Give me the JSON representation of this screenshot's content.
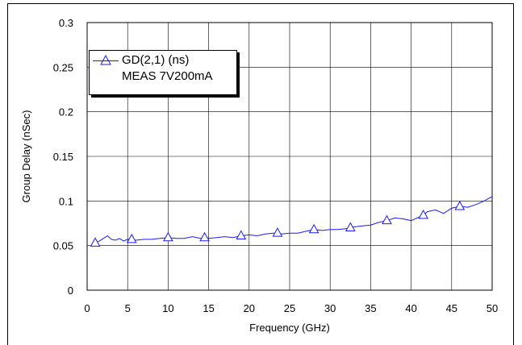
{
  "chart_data": {
    "type": "line",
    "xlabel": "Frequency (GHz)",
    "ylabel": "Group Delay (nSec)",
    "xlim": [
      0,
      50
    ],
    "ylim": [
      0,
      0.3
    ],
    "x_ticks": [
      "0",
      "5",
      "10",
      "15",
      "20",
      "25",
      "30",
      "35",
      "40",
      "45",
      "50"
    ],
    "y_ticks": [
      "0",
      "0.05",
      "0.1",
      "0.15",
      "0.2",
      "0.25",
      "0.3"
    ],
    "grid": true,
    "legend_position": "top-left",
    "series": [
      {
        "name": "GD(2,1) (ns)",
        "subtitle": "MEAS 7V200mA",
        "color": "#1a1aff",
        "marker": "triangle",
        "x": [
          1,
          1.5,
          2,
          2.5,
          3,
          3.5,
          4,
          4.5,
          5,
          5.5,
          6,
          7,
          8,
          9,
          10,
          11,
          12,
          13,
          14,
          14.5,
          15,
          16,
          17,
          18,
          19,
          20,
          21,
          22,
          23,
          23.5,
          24,
          25,
          26,
          27,
          28,
          29,
          30,
          31,
          32,
          32.5,
          33,
          34,
          35,
          36,
          37,
          38,
          39,
          40,
          41,
          41.5,
          42,
          43,
          44,
          45,
          46,
          47,
          48,
          49,
          50
        ],
        "y": [
          0.053,
          0.055,
          0.058,
          0.061,
          0.057,
          0.056,
          0.058,
          0.055,
          0.057,
          0.057,
          0.056,
          0.057,
          0.057,
          0.058,
          0.059,
          0.058,
          0.058,
          0.06,
          0.058,
          0.059,
          0.058,
          0.059,
          0.06,
          0.059,
          0.061,
          0.062,
          0.061,
          0.063,
          0.064,
          0.064,
          0.063,
          0.064,
          0.064,
          0.066,
          0.068,
          0.067,
          0.068,
          0.068,
          0.069,
          0.07,
          0.071,
          0.072,
          0.073,
          0.076,
          0.078,
          0.081,
          0.08,
          0.078,
          0.082,
          0.084,
          0.088,
          0.09,
          0.086,
          0.092,
          0.094,
          0.093,
          0.096,
          0.1,
          0.105
        ],
        "marker_x": [
          1,
          5.5,
          10,
          14.5,
          19,
          23.5,
          28,
          32.5,
          37,
          41.5,
          46
        ]
      }
    ]
  }
}
